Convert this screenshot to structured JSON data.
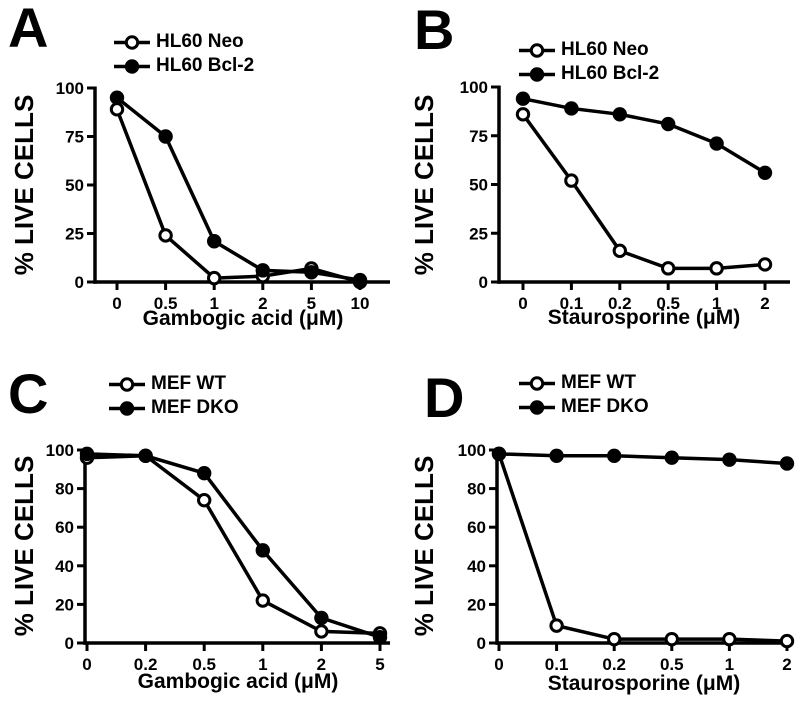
{
  "figure": {
    "background_color": "#ffffff",
    "ink_color": "#000000"
  },
  "chart_data": [
    {
      "type": "line",
      "panel": "A",
      "xlabel": "Gambogic acid (μM)",
      "ylabel": "% LIVE CELLS",
      "categories": [
        "0",
        "0.5",
        "1",
        "2",
        "5",
        "10"
      ],
      "ylim": [
        0,
        100
      ],
      "yticks": [
        0,
        25,
        50,
        75,
        100
      ],
      "grid": false,
      "legend_position": "top",
      "series": [
        {
          "name": "HL60 Neo",
          "marker": "open-circle",
          "values": [
            89,
            24,
            2,
            3,
            7,
            0
          ]
        },
        {
          "name": "HL60 Bcl-2",
          "marker": "filled-circle",
          "values": [
            95,
            75,
            21,
            6,
            5,
            1
          ]
        }
      ]
    },
    {
      "type": "line",
      "panel": "B",
      "xlabel": "Staurosporine (μM)",
      "ylabel": "% LIVE CELLS",
      "categories": [
        "0",
        "0.1",
        "0.2",
        "0.5",
        "1",
        "2"
      ],
      "ylim": [
        0,
        100
      ],
      "yticks": [
        0,
        25,
        50,
        75,
        100
      ],
      "grid": false,
      "legend_position": "top",
      "series": [
        {
          "name": "HL60 Neo",
          "marker": "open-circle",
          "values": [
            86,
            52,
            16,
            7,
            7,
            9
          ]
        },
        {
          "name": "HL60 Bcl-2",
          "marker": "filled-circle",
          "values": [
            94,
            89,
            86,
            81,
            71,
            56
          ]
        }
      ]
    },
    {
      "type": "line",
      "panel": "C",
      "xlabel": "Gambogic acid (μM)",
      "ylabel": "% LIVE CELLS",
      "categories": [
        "0",
        "0.2",
        "0.5",
        "1",
        "2",
        "5"
      ],
      "ylim": [
        0,
        100
      ],
      "yticks": [
        0,
        20,
        40,
        60,
        80,
        100
      ],
      "grid": false,
      "legend_position": "top",
      "series": [
        {
          "name": "MEF WT",
          "marker": "open-circle",
          "values": [
            96,
            97,
            74,
            22,
            6,
            5
          ]
        },
        {
          "name": "MEF DKO",
          "marker": "filled-circle",
          "values": [
            98,
            97,
            88,
            48,
            13,
            3
          ]
        }
      ]
    },
    {
      "type": "line",
      "panel": "D",
      "xlabel": "Staurosporine (μM)",
      "ylabel": "% LIVE CELLS",
      "categories": [
        "0",
        "0.1",
        "0.2",
        "0.5",
        "1",
        "2"
      ],
      "ylim": [
        0,
        100
      ],
      "yticks": [
        0,
        20,
        40,
        60,
        80,
        100
      ],
      "grid": false,
      "legend_position": "top",
      "series": [
        {
          "name": "MEF WT",
          "marker": "open-circle",
          "values": [
            98,
            9,
            2,
            2,
            2,
            1
          ]
        },
        {
          "name": "MEF DKO",
          "marker": "filled-circle",
          "values": [
            98,
            97,
            97,
            96,
            95,
            93
          ]
        }
      ]
    }
  ]
}
